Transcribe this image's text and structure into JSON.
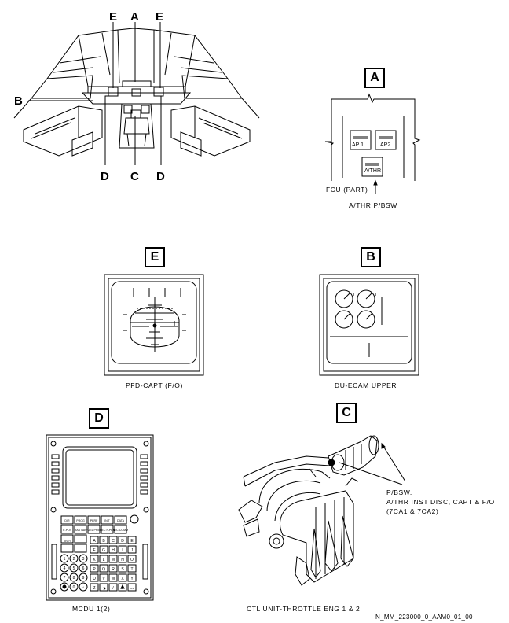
{
  "cockpit": {
    "markers_top": [
      "E",
      "A",
      "E"
    ],
    "marker_left": "B",
    "markers_bottom": [
      "D",
      "C",
      "D"
    ]
  },
  "detail_a": {
    "tag": "A",
    "buttons": [
      "AP 1",
      "AP2",
      "A/THR"
    ],
    "caption": "FCU (PART)",
    "callout": "A/THR P/BSW"
  },
  "detail_e": {
    "tag": "E",
    "caption": "PFD-CAPT (F/O)"
  },
  "detail_b": {
    "tag": "B",
    "caption": "DU-ECAM UPPER"
  },
  "detail_d": {
    "tag": "D",
    "caption": "MCDU 1(2)",
    "keys_row1": [
      "DIR",
      "PROG",
      "PERF",
      "INIT",
      "DATA"
    ],
    "keys_row2": [
      "F-PLN",
      "RAD NAV",
      "FUEL PRED",
      "SEC F-PLN",
      "ATC COMM"
    ],
    "letters": [
      "A",
      "B",
      "C",
      "D",
      "E",
      "F",
      "G",
      "H",
      "I",
      "J",
      "K",
      "L",
      "M",
      "N",
      "O",
      "P",
      "Q",
      "R",
      "S",
      "T",
      "U",
      "V",
      "W",
      "X",
      "Y",
      "Z",
      "/",
      "SP",
      "OVFY",
      "CLR"
    ],
    "digits": [
      "1",
      "2",
      "3",
      "4",
      "5",
      "6",
      "7",
      "8",
      "9",
      ".",
      "0",
      "+/-"
    ]
  },
  "detail_c": {
    "tag": "C",
    "callout_lines": [
      "P/BSW.",
      "A/THR INST DISC, CAPT & F/O",
      "(7CA1 & 7CA2)"
    ],
    "caption": "CTL UNIT-THROTTLE ENG 1 & 2"
  },
  "reference": "N_MM_223000_0_AAM0_01_00"
}
